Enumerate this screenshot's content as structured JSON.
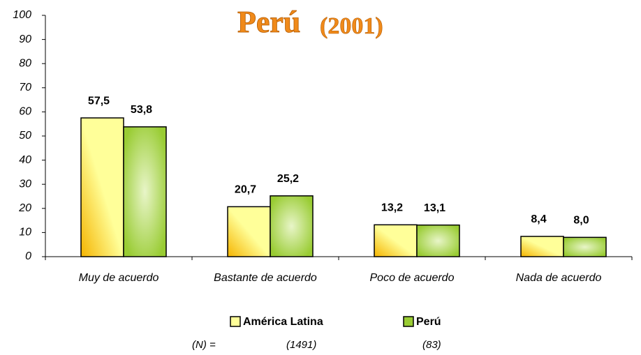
{
  "chart_data": {
    "type": "bar",
    "title": "Perú",
    "subtitle": "(2001)",
    "categories": [
      "Muy de acuerdo",
      "Bastante de acuerdo",
      "Poco de acuerdo",
      "Nada de acuerdo"
    ],
    "series": [
      {
        "name": "América Latina",
        "color": "#ffff99",
        "values": [
          57.5,
          20.7,
          13.2,
          8.4
        ],
        "value_labels": [
          "57,5",
          "20,7",
          "13,2",
          "8,4"
        ]
      },
      {
        "name": "Perú",
        "color": "#99cc33",
        "values": [
          53.8,
          25.2,
          13.1,
          8.0
        ],
        "value_labels": [
          "53,8",
          "25,2",
          "13,1",
          "8,0"
        ]
      }
    ],
    "ylim": [
      0,
      100
    ],
    "yticks": [
      0,
      10,
      20,
      30,
      40,
      50,
      60,
      70,
      80,
      90,
      100
    ],
    "annotations": [
      "(N) =",
      "(1491)",
      "(83)"
    ]
  }
}
